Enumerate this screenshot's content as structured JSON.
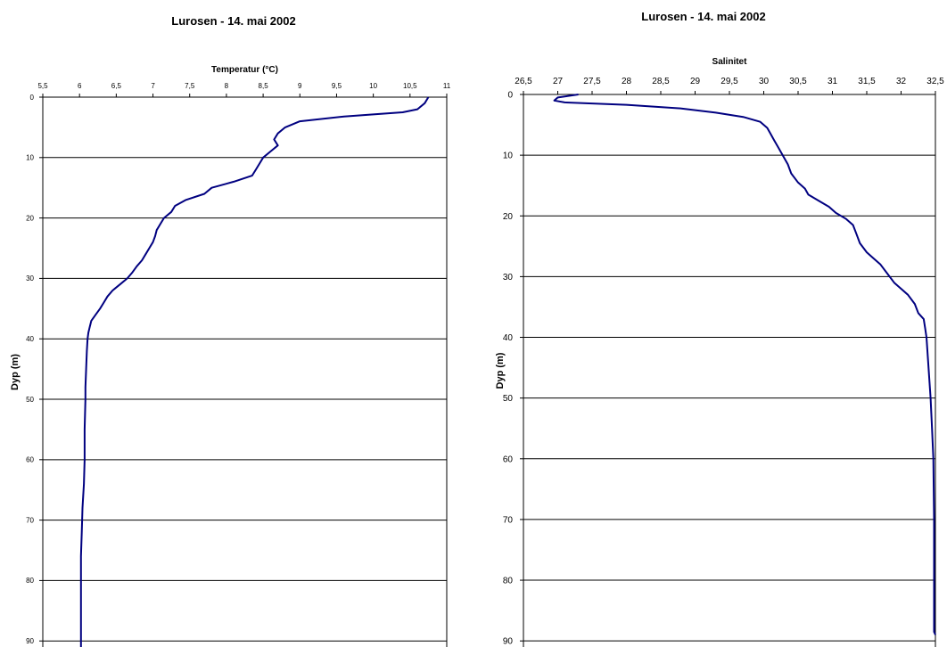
{
  "chart_data": [
    {
      "type": "line",
      "title": "Lurosen - 14. mai 2002",
      "xlabel": "Temperatur (°C)",
      "ylabel": "Dyp (m)",
      "x_axis_position": "top",
      "y_axis_inverted": true,
      "xlim": [
        5.5,
        11
      ],
      "ylim": [
        0,
        91
      ],
      "x_ticks": [
        "5,5",
        "6",
        "6,5",
        "7",
        "7,5",
        "8",
        "8,5",
        "9",
        "9,5",
        "10",
        "10,5",
        "11"
      ],
      "y_ticks": [
        "0",
        "10",
        "20",
        "30",
        "40",
        "50",
        "60",
        "70",
        "80",
        "90"
      ],
      "grid": "horizontal",
      "line_color": "#000080",
      "series": [
        {
          "points": [
            [
              10.75,
              0
            ],
            [
              10.7,
              1
            ],
            [
              10.6,
              2
            ],
            [
              10.4,
              2.5
            ],
            [
              9.6,
              3.2
            ],
            [
              9.0,
              4
            ],
            [
              8.8,
              5
            ],
            [
              8.7,
              6
            ],
            [
              8.65,
              7
            ],
            [
              8.7,
              8
            ],
            [
              8.6,
              9
            ],
            [
              8.5,
              10
            ],
            [
              8.45,
              11
            ],
            [
              8.4,
              12
            ],
            [
              8.35,
              13
            ],
            [
              8.1,
              14
            ],
            [
              7.8,
              15
            ],
            [
              7.7,
              16
            ],
            [
              7.45,
              17
            ],
            [
              7.3,
              18
            ],
            [
              7.25,
              19
            ],
            [
              7.15,
              20
            ],
            [
              7.1,
              21
            ],
            [
              7.05,
              22
            ],
            [
              7.03,
              23
            ],
            [
              7.0,
              24
            ],
            [
              6.95,
              25
            ],
            [
              6.9,
              26
            ],
            [
              6.85,
              27
            ],
            [
              6.78,
              28
            ],
            [
              6.72,
              29
            ],
            [
              6.65,
              30
            ],
            [
              6.55,
              31
            ],
            [
              6.45,
              32
            ],
            [
              6.38,
              33
            ],
            [
              6.33,
              34
            ],
            [
              6.28,
              35
            ],
            [
              6.22,
              36
            ],
            [
              6.16,
              37
            ],
            [
              6.14,
              38
            ],
            [
              6.12,
              39
            ],
            [
              6.11,
              40
            ],
            [
              6.1,
              42
            ],
            [
              6.09,
              45
            ],
            [
              6.08,
              48
            ],
            [
              6.08,
              50
            ],
            [
              6.07,
              55
            ],
            [
              6.07,
              60
            ],
            [
              6.06,
              64
            ],
            [
              6.04,
              68
            ],
            [
              6.03,
              72
            ],
            [
              6.02,
              76
            ],
            [
              6.02,
              80
            ],
            [
              6.02,
              85
            ],
            [
              6.02,
              91
            ]
          ]
        }
      ]
    },
    {
      "type": "line",
      "title": "Lurosen - 14. mai 2002",
      "xlabel": "Salinitet",
      "ylabel": "Dyp (m)",
      "x_axis_position": "top",
      "y_axis_inverted": true,
      "xlim": [
        26.5,
        32.5
      ],
      "ylim": [
        0,
        91
      ],
      "x_ticks": [
        "26,5",
        "27",
        "27,5",
        "28",
        "28,5",
        "29",
        "29,5",
        "30",
        "30,5",
        "31",
        "31,5",
        "32",
        "32,5"
      ],
      "y_ticks": [
        "0",
        "10",
        "20",
        "30",
        "40",
        "50",
        "60",
        "70",
        "80",
        "90"
      ],
      "grid": "horizontal",
      "line_color": "#000080",
      "series": [
        {
          "points": [
            [
              27.3,
              0
            ],
            [
              27.0,
              0.5
            ],
            [
              26.95,
              1
            ],
            [
              27.1,
              1.3
            ],
            [
              28.0,
              1.7
            ],
            [
              28.8,
              2.3
            ],
            [
              29.3,
              3
            ],
            [
              29.7,
              3.7
            ],
            [
              29.95,
              4.5
            ],
            [
              30.05,
              5.5
            ],
            [
              30.1,
              6.5
            ],
            [
              30.15,
              7.5
            ],
            [
              30.2,
              8.5
            ],
            [
              30.25,
              9.5
            ],
            [
              30.3,
              10.5
            ],
            [
              30.35,
              11.5
            ],
            [
              30.4,
              13
            ],
            [
              30.5,
              14.5
            ],
            [
              30.6,
              15.5
            ],
            [
              30.65,
              16.5
            ],
            [
              30.8,
              17.5
            ],
            [
              30.95,
              18.5
            ],
            [
              31.05,
              19.5
            ],
            [
              31.2,
              20.5
            ],
            [
              31.3,
              21.5
            ],
            [
              31.35,
              23
            ],
            [
              31.4,
              24.5
            ],
            [
              31.5,
              26
            ],
            [
              31.6,
              27
            ],
            [
              31.7,
              28
            ],
            [
              31.8,
              29.5
            ],
            [
              31.9,
              31
            ],
            [
              32.0,
              32
            ],
            [
              32.1,
              33
            ],
            [
              32.2,
              34.5
            ],
            [
              32.25,
              36
            ],
            [
              32.33,
              37
            ],
            [
              32.35,
              38.5
            ],
            [
              32.37,
              40
            ],
            [
              32.4,
              45
            ],
            [
              32.43,
              50
            ],
            [
              32.45,
              55
            ],
            [
              32.47,
              60
            ],
            [
              32.48,
              70
            ],
            [
              32.48,
              80
            ],
            [
              32.48,
              88.5
            ],
            [
              32.5,
              89
            ]
          ]
        }
      ]
    }
  ]
}
